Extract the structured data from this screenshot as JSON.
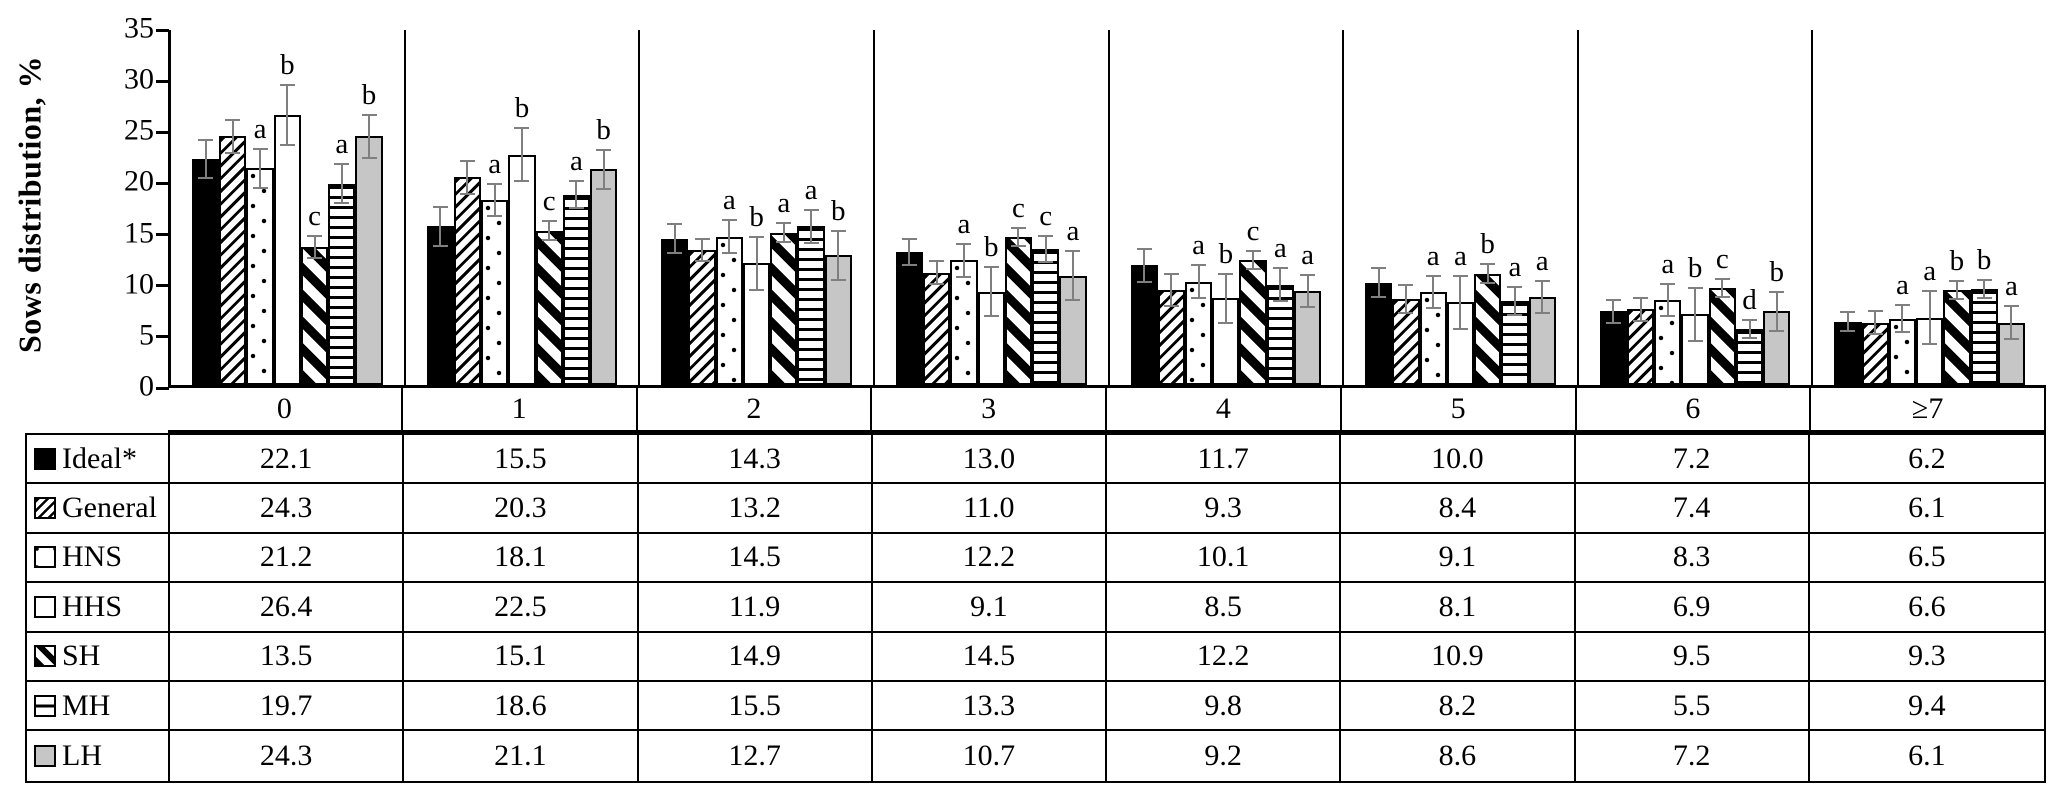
{
  "chart_data": {
    "type": "bar",
    "title": "",
    "ylabel": "Sows distribution, %",
    "xlabel": "",
    "ylim": [
      0,
      35
    ],
    "ytick_step": 5,
    "grid": false,
    "legend_position": "table-left-column",
    "categories": [
      "0",
      "1",
      "2",
      "3",
      "4",
      "5",
      "6",
      "≥7"
    ],
    "series": [
      {
        "name": "Ideal*",
        "pattern": "solid-black",
        "values": [
          22.1,
          15.5,
          14.3,
          13.0,
          11.7,
          10.0,
          7.2,
          6.2
        ],
        "errors": [
          1.8,
          1.8,
          1.3,
          1.2,
          1.5,
          1.3,
          1.0,
          0.8
        ],
        "letters": [
          "",
          "",
          "",
          "",
          "",
          "",
          "",
          ""
        ]
      },
      {
        "name": "General",
        "pattern": "thin-diagonal-stripes",
        "values": [
          24.3,
          20.3,
          13.2,
          11.0,
          9.3,
          8.4,
          7.4,
          6.1
        ],
        "errors": [
          1.5,
          1.5,
          1.0,
          1.0,
          1.5,
          1.3,
          1.0,
          1.0
        ],
        "letters": [
          "",
          "",
          "",
          "",
          "",
          "",
          "",
          ""
        ]
      },
      {
        "name": "HNS",
        "pattern": "dots",
        "values": [
          21.2,
          18.1,
          14.5,
          12.2,
          10.1,
          9.1,
          8.3,
          6.5
        ],
        "errors": [
          1.8,
          1.5,
          1.5,
          1.5,
          1.5,
          1.5,
          1.5,
          1.2
        ],
        "letters": [
          "a",
          "a",
          "a",
          "a",
          "a",
          "a",
          "a",
          "a"
        ]
      },
      {
        "name": "HHS",
        "pattern": "white",
        "values": [
          26.4,
          22.5,
          11.9,
          9.1,
          8.5,
          8.1,
          6.9,
          6.6
        ],
        "errors": [
          2.8,
          2.5,
          2.5,
          2.3,
          2.3,
          2.5,
          2.5,
          2.5
        ],
        "letters": [
          "b",
          "b",
          "b",
          "b",
          "b",
          "a",
          "b",
          "a"
        ]
      },
      {
        "name": "SH",
        "pattern": "thick-diagonal-stripes",
        "values": [
          13.5,
          15.1,
          14.9,
          14.5,
          12.2,
          10.9,
          9.5,
          9.3
        ],
        "errors": [
          1.0,
          0.8,
          0.8,
          0.8,
          0.8,
          0.8,
          0.8,
          0.8
        ],
        "letters": [
          "c",
          "c",
          "a",
          "c",
          "c",
          "b",
          "c",
          "b"
        ]
      },
      {
        "name": "MH",
        "pattern": "horizontal-stripes",
        "values": [
          19.7,
          18.6,
          15.5,
          13.3,
          9.8,
          8.2,
          5.5,
          9.4
        ],
        "errors": [
          1.8,
          1.2,
          1.5,
          1.2,
          1.5,
          1.3,
          0.8,
          0.8
        ],
        "letters": [
          "a",
          "a",
          "a",
          "c",
          "a",
          "a",
          "d",
          "b"
        ]
      },
      {
        "name": "LH",
        "pattern": "solid-gray",
        "values": [
          24.3,
          21.1,
          12.7,
          10.7,
          9.2,
          8.6,
          7.2,
          6.1
        ],
        "errors": [
          2.0,
          1.8,
          2.3,
          2.3,
          1.5,
          1.5,
          1.8,
          1.5
        ],
        "letters": [
          "b",
          "b",
          "b",
          "a",
          "a",
          "a",
          "b",
          "a"
        ]
      }
    ]
  },
  "table": {
    "column_headers": [
      "0",
      "1",
      "2",
      "3",
      "4",
      "5",
      "6",
      "≥7"
    ],
    "row_labels": [
      "Ideal*",
      "General",
      "HNS",
      "HHS",
      "SH",
      "MH",
      "LH"
    ],
    "note": "cell values identical to chart_data.series values"
  },
  "colors": {
    "bar_outline": "#000000",
    "gray_fill": "#c6c6c6",
    "error_bar": "#7f7f7f",
    "text": "#000000",
    "background": "#ffffff"
  },
  "icons": {
    "legend_swatches": [
      "solid-black-swatch-icon",
      "thin-diagonal-swatch-icon",
      "dotted-swatch-icon",
      "white-swatch-icon",
      "thick-diagonal-swatch-icon",
      "horizontal-line-swatch-icon",
      "gray-swatch-icon"
    ]
  }
}
